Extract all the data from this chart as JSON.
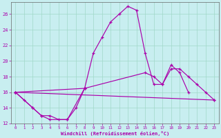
{
  "xlabel": "Windchill (Refroidissement éolien,°C)",
  "background_color": "#c8eef0",
  "grid_color": "#a0d8c8",
  "line_color": "#aa00aa",
  "xlim": [
    -0.5,
    23.5
  ],
  "ylim": [
    12,
    27.5
  ],
  "yticks": [
    12,
    14,
    16,
    18,
    20,
    22,
    24,
    26
  ],
  "xticks": [
    0,
    1,
    2,
    3,
    4,
    5,
    6,
    7,
    8,
    9,
    10,
    11,
    12,
    13,
    14,
    15,
    16,
    17,
    18,
    19,
    20,
    21,
    22,
    23
  ],
  "series": [
    {
      "x": [
        0,
        1,
        2,
        3,
        4,
        5,
        6,
        7,
        8,
        9,
        10,
        11,
        12,
        13,
        14,
        15,
        16,
        17,
        18,
        19,
        20
      ],
      "y": [
        16.0,
        15.0,
        14.0,
        13.0,
        13.0,
        12.5,
        12.5,
        14.0,
        16.5,
        21.0,
        23.0,
        25.0,
        26.0,
        27.0,
        26.5,
        21.0,
        17.0,
        17.0,
        19.5,
        18.5,
        16.0
      ]
    },
    {
      "x": [
        0,
        2,
        3,
        4,
        6,
        8
      ],
      "y": [
        16.0,
        14.0,
        13.0,
        12.5,
        12.5,
        16.5
      ]
    },
    {
      "x": [
        0,
        23
      ],
      "y": [
        16.0,
        15.0
      ]
    },
    {
      "x": [
        0,
        8,
        15,
        16,
        17,
        18,
        19,
        20,
        21,
        22,
        23
      ],
      "y": [
        16.0,
        16.5,
        18.5,
        18.0,
        17.0,
        19.0,
        19.0,
        18.0,
        17.0,
        16.0,
        15.0
      ]
    }
  ]
}
